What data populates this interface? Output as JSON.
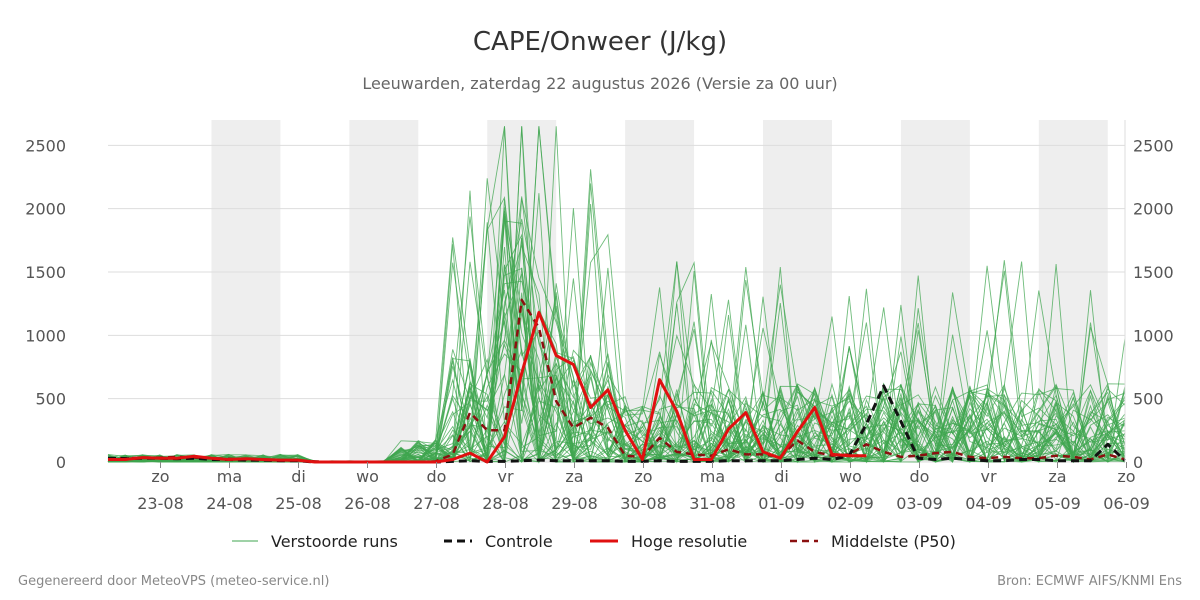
{
  "title": "CAPE/Onweer (J/kg)",
  "subtitle": "Leeuwarden, zaterdag 22 augustus 2026 (Versie za 00 uur)",
  "footer_left": "Gegenereerd door MeteoVPS (meteo-service.nl)",
  "footer_right": "Bron: ECMWF AIFS/KNMI Ens",
  "chart_data": {
    "type": "line",
    "x_unit": "days from 22-08 00 UTC",
    "xlim": [
      -0.75,
      14
    ],
    "ylim": [
      0,
      2700
    ],
    "yticks": [
      0,
      500,
      1000,
      1500,
      2000,
      2500
    ],
    "grid": true,
    "weekend_bands": [
      [
        0.75,
        1.75
      ],
      [
        2.75,
        3.75
      ],
      [
        4.75,
        5.75
      ],
      [
        6.75,
        7.75
      ],
      [
        8.75,
        9.75
      ],
      [
        10.75,
        11.75
      ],
      [
        12.75,
        13.75
      ]
    ],
    "x_ticks": [
      {
        "x": 1,
        "day": "zo",
        "date": "23-08"
      },
      {
        "x": 2,
        "day": "ma",
        "date": "24-08"
      },
      {
        "x": 3,
        "day": "di",
        "date": "25-08"
      },
      {
        "x": 4,
        "day": "wo",
        "date": "26-08"
      },
      {
        "x": 5,
        "day": "do",
        "date": "27-08"
      },
      {
        "x": 6,
        "day": "vr",
        "date": "28-08"
      },
      {
        "x": 7,
        "day": "za",
        "date": "29-08"
      },
      {
        "x": 8,
        "day": "zo",
        "date": "30-08"
      },
      {
        "x": 9,
        "day": "ma",
        "date": "31-08"
      },
      {
        "x": 10,
        "day": "di",
        "date": "01-09"
      },
      {
        "x": 11,
        "day": "wo",
        "date": "02-09"
      },
      {
        "x": 12,
        "day": "do",
        "date": "03-09"
      },
      {
        "x": 13,
        "day": "vr",
        "date": "04-09"
      },
      {
        "x": 14,
        "day": "za",
        "date": "05-09"
      },
      {
        "x": 15,
        "day": "zo",
        "date": "06-09"
      }
    ],
    "legend": [
      {
        "key": "ens",
        "label": "Verstoorde runs"
      },
      {
        "key": "control",
        "label": "Controle"
      },
      {
        "key": "hires",
        "label": "Hoge resolutie"
      },
      {
        "key": "p50",
        "label": "Middelste (P50)"
      }
    ],
    "colors": {
      "ens": "#3fa64f",
      "control": "#111111",
      "hires": "#e01010",
      "p50": "#8b1010",
      "band": "#eeeeee",
      "grid": "#dddddd"
    },
    "series": [
      {
        "name": "Hoge resolutie",
        "key": "hires",
        "x": [
          -0.75,
          -0.5,
          -0.25,
          0,
          0.25,
          0.5,
          0.75,
          1,
          1.25,
          1.5,
          1.75,
          2,
          2.25,
          2.5,
          2.75,
          3,
          3.25,
          3.5,
          3.75,
          4,
          4.25,
          4.5,
          4.75,
          5,
          5.25,
          5.5,
          5.75,
          6,
          6.25,
          6.5,
          6.75,
          7,
          7.25,
          7.5,
          7.75,
          8,
          8.25,
          8.5,
          8.75,
          9,
          9.25,
          9.5,
          9.75,
          10,
          10.25
        ],
        "values": [
          20,
          20,
          35,
          30,
          30,
          45,
          30,
          20,
          25,
          20,
          15,
          15,
          0,
          0,
          0,
          0,
          0,
          0,
          0,
          0,
          20,
          70,
          0,
          200,
          700,
          1180,
          840,
          770,
          430,
          570,
          250,
          20,
          650,
          400,
          20,
          20,
          260,
          390,
          80,
          30,
          240,
          430,
          60,
          50,
          50
        ]
      },
      {
        "name": "Controle",
        "key": "control",
        "x": [
          -0.75,
          -0.5,
          -0.25,
          0,
          0.25,
          0.5,
          0.75,
          1,
          1.25,
          1.5,
          1.75,
          2,
          2.25,
          2.5,
          2.75,
          3,
          3.25,
          3.5,
          3.75,
          4,
          4.25,
          4.5,
          4.75,
          5,
          5.25,
          5.5,
          5.75,
          6,
          6.25,
          6.5,
          6.75,
          7,
          7.25,
          7.5,
          7.75,
          8,
          8.25,
          8.5,
          8.75,
          9,
          9.25,
          9.5,
          9.75,
          10,
          10.25,
          10.5,
          10.75,
          11,
          11.25,
          11.5,
          11.75,
          12,
          12.25,
          12.5,
          12.75,
          13,
          13.25,
          13.5,
          13.75,
          14
        ],
        "values": [
          30,
          25,
          30,
          30,
          25,
          30,
          20,
          20,
          15,
          15,
          10,
          10,
          0,
          0,
          0,
          0,
          0,
          0,
          0,
          0,
          5,
          10,
          5,
          5,
          10,
          15,
          10,
          10,
          10,
          10,
          5,
          5,
          10,
          5,
          5,
          5,
          10,
          10,
          10,
          10,
          20,
          30,
          20,
          50,
          300,
          600,
          320,
          30,
          20,
          30,
          20,
          10,
          10,
          20,
          20,
          10,
          10,
          10,
          140,
          10
        ]
      },
      {
        "name": "Middelste (P50)",
        "key": "p50",
        "x": [
          -0.75,
          -0.5,
          -0.25,
          0,
          0.25,
          0.5,
          0.75,
          1,
          1.25,
          1.5,
          1.75,
          2,
          2.25,
          2.5,
          2.75,
          3,
          3.25,
          3.5,
          3.75,
          4,
          4.25,
          4.5,
          4.75,
          5,
          5.25,
          5.5,
          5.75,
          6,
          6.25,
          6.5,
          6.75,
          7,
          7.25,
          7.5,
          7.75,
          8,
          8.25,
          8.5,
          8.75,
          9,
          9.25,
          9.5,
          9.75,
          10,
          10.25,
          10.5,
          10.75,
          11,
          11.25,
          11.5,
          11.75,
          12,
          12.25,
          12.5,
          12.75,
          13,
          13.25,
          13.5,
          13.75,
          14
        ],
        "values": [
          30,
          30,
          35,
          35,
          40,
          35,
          30,
          25,
          20,
          20,
          15,
          10,
          5,
          0,
          0,
          0,
          0,
          0,
          0,
          5,
          60,
          390,
          250,
          250,
          1280,
          1060,
          480,
          270,
          350,
          270,
          50,
          40,
          190,
          80,
          60,
          50,
          100,
          60,
          60,
          40,
          170,
          80,
          50,
          60,
          140,
          80,
          40,
          50,
          70,
          80,
          40,
          30,
          40,
          30,
          30,
          50,
          40,
          20,
          60,
          20
        ]
      }
    ]
  }
}
